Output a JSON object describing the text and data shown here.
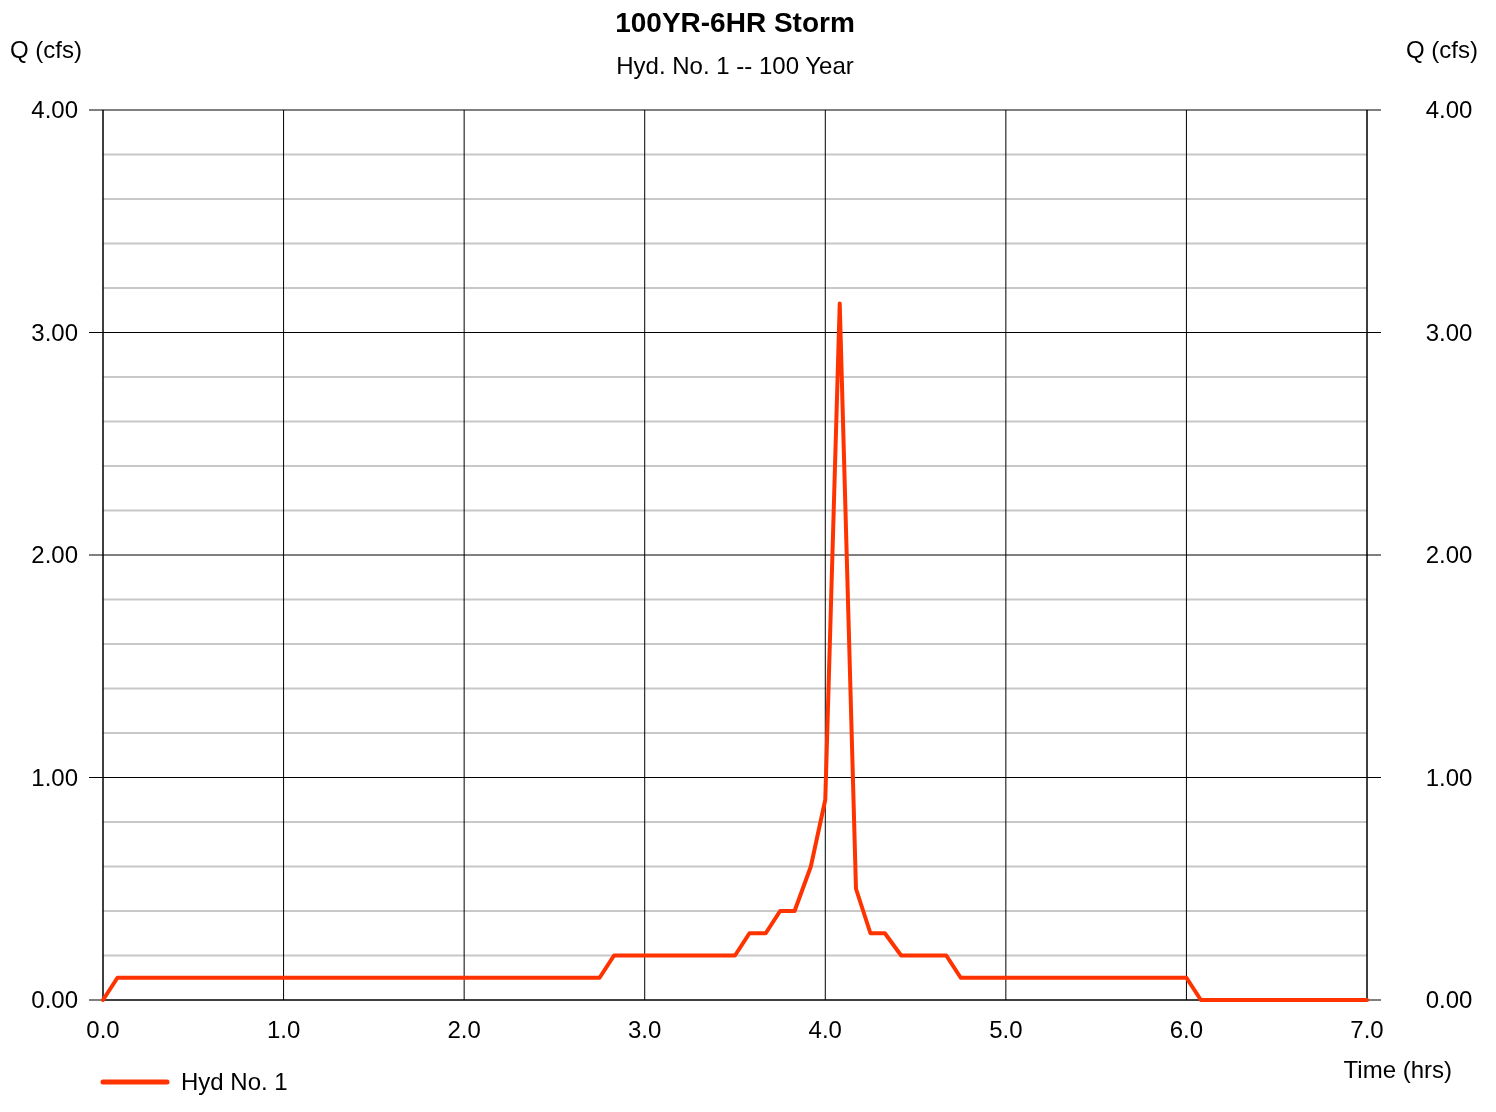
{
  "chart_data": {
    "type": "line",
    "title": "100YR-6HR Storm",
    "subtitle": "Hyd. No. 1 -- 100 Year",
    "xlabel": "Time (hrs)",
    "ylabel": "Q (cfs)",
    "y2label": "Q (cfs)",
    "x": [
      0,
      0.08,
      2.75,
      2.83,
      3.5,
      3.58,
      3.67,
      3.75,
      3.83,
      3.92,
      4.0,
      4.08,
      4.17,
      4.25,
      4.33,
      4.42,
      4.67,
      4.75,
      6.0,
      6.08,
      7.0
    ],
    "series": [
      {
        "name": "Hyd No. 1",
        "color": "#ff3300",
        "values": [
          0,
          0.1,
          0.1,
          0.2,
          0.2,
          0.3,
          0.3,
          0.4,
          0.4,
          0.6,
          0.9,
          3.13,
          0.5,
          0.3,
          0.3,
          0.2,
          0.2,
          0.1,
          0.1,
          0,
          0
        ]
      }
    ],
    "xlim": [
      0,
      7
    ],
    "xticks": [
      {
        "value": 0,
        "label": "0.0"
      },
      {
        "value": 1,
        "label": "1.0"
      },
      {
        "value": 2,
        "label": "2.0"
      },
      {
        "value": 3,
        "label": "3.0"
      },
      {
        "value": 4,
        "label": "4.0"
      },
      {
        "value": 5,
        "label": "5.0"
      },
      {
        "value": 6,
        "label": "6.0"
      },
      {
        "value": 7,
        "label": "7.0"
      }
    ],
    "ylim": [
      0,
      4
    ],
    "yticks": [
      {
        "value": 0,
        "label": "0.00"
      },
      {
        "value": 0.2,
        "label": null
      },
      {
        "value": 0.4,
        "label": null
      },
      {
        "value": 0.6,
        "label": null
      },
      {
        "value": 0.8,
        "label": null
      },
      {
        "value": 1,
        "label": "1.00"
      },
      {
        "value": 1.2,
        "label": null
      },
      {
        "value": 1.4,
        "label": null
      },
      {
        "value": 1.6,
        "label": null
      },
      {
        "value": 1.8,
        "label": null
      },
      {
        "value": 2,
        "label": "2.00"
      },
      {
        "value": 2.2,
        "label": null
      },
      {
        "value": 2.4,
        "label": null
      },
      {
        "value": 2.6,
        "label": null
      },
      {
        "value": 2.8,
        "label": null
      },
      {
        "value": 3,
        "label": "3.00"
      },
      {
        "value": 3.2,
        "label": null
      },
      {
        "value": 3.4,
        "label": null
      },
      {
        "value": 3.6,
        "label": null
      },
      {
        "value": 3.8,
        "label": null
      },
      {
        "value": 4,
        "label": "4.00"
      }
    ],
    "y2lim": [
      0,
      4
    ],
    "y2ticks": [
      {
        "value": 0,
        "label": "0.00"
      },
      {
        "value": 1,
        "label": "1.00"
      },
      {
        "value": 2,
        "label": "2.00"
      },
      {
        "value": 3,
        "label": "3.00"
      },
      {
        "value": 4,
        "label": "4.00"
      }
    ],
    "grid": true,
    "legend": "bottom left",
    "marker": "none",
    "line_style": "solid"
  }
}
